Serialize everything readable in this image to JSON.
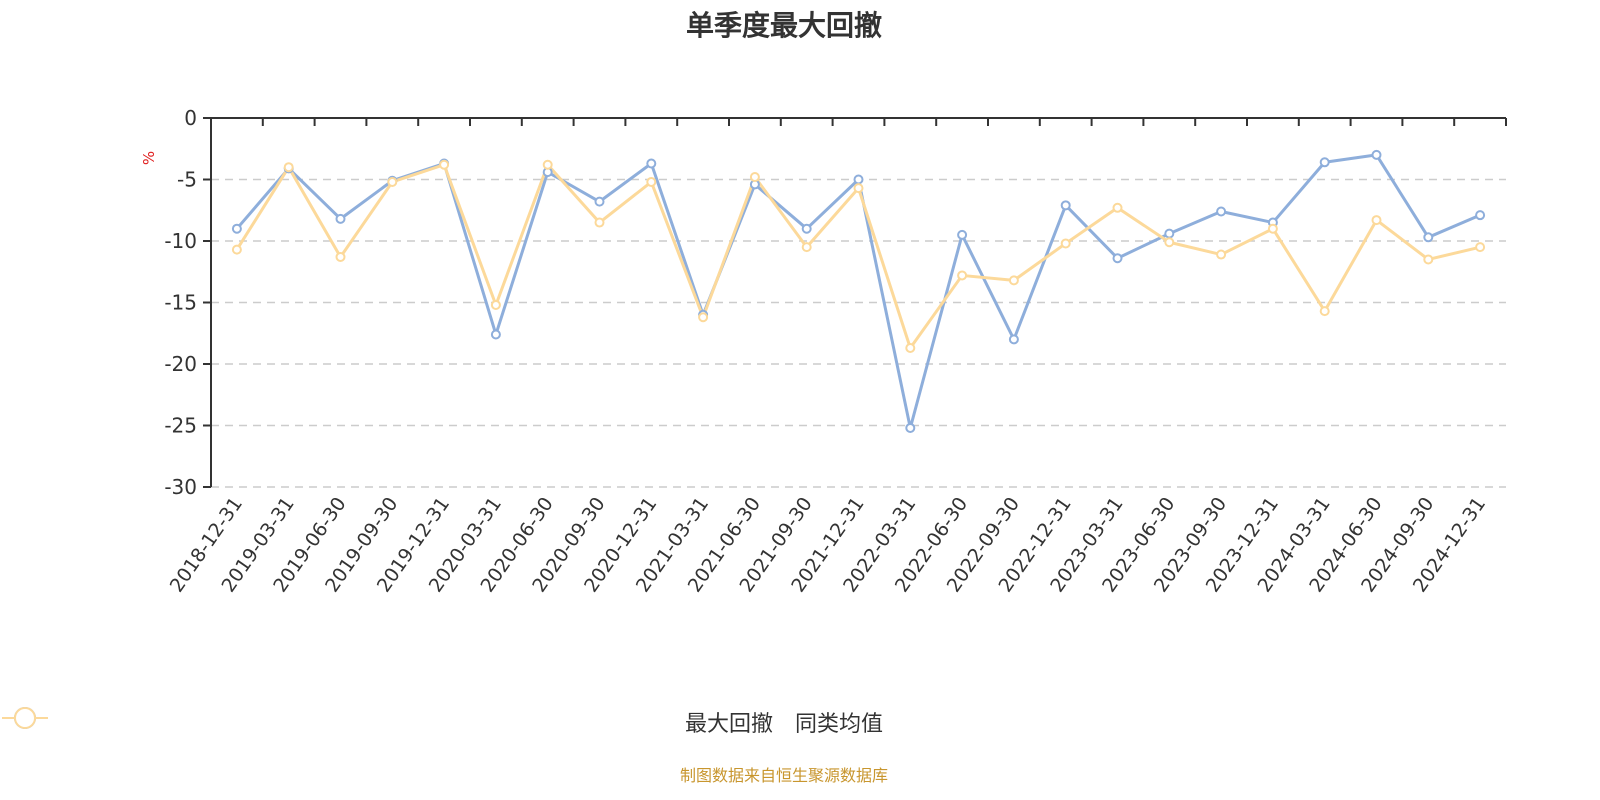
{
  "title": "单季度最大回撤",
  "source_note": "制图数据来自恒生聚源数据库",
  "legend": [
    {
      "label": "最大回撤",
      "color": "#8eaedb"
    },
    {
      "label": "同类均值",
      "color": "#fcd99a"
    }
  ],
  "chart_data": {
    "type": "line",
    "title": "单季度最大回撤",
    "xlabel": "",
    "ylabel": "%",
    "ylim": [
      -30,
      0
    ],
    "yticks": [
      0,
      -5,
      -10,
      -15,
      -20,
      -25,
      -30
    ],
    "grid": true,
    "legend_position": "bottom",
    "categories": [
      "2018-12-31",
      "2019-03-31",
      "2019-06-30",
      "2019-09-30",
      "2019-12-31",
      "2020-03-31",
      "2020-06-30",
      "2020-09-30",
      "2020-12-31",
      "2021-03-31",
      "2021-06-30",
      "2021-09-30",
      "2021-12-31",
      "2022-03-31",
      "2022-06-30",
      "2022-09-30",
      "2022-12-31",
      "2023-03-31",
      "2023-06-30",
      "2023-09-30",
      "2023-12-31",
      "2024-03-31",
      "2024-06-30",
      "2024-09-30",
      "2024-12-31"
    ],
    "series": [
      {
        "name": "最大回撤",
        "color": "#8eaedb",
        "values": [
          -9.0,
          -4.1,
          -8.2,
          -5.1,
          -3.7,
          -17.6,
          -4.4,
          -6.8,
          -3.7,
          -16.0,
          -5.4,
          -9.0,
          -5.0,
          -25.2,
          -9.5,
          -18.0,
          -7.1,
          -11.4,
          -9.4,
          -7.6,
          -8.5,
          -3.6,
          -3.0,
          -9.7,
          -7.9
        ]
      },
      {
        "name": "同类均值",
        "color": "#fcd99a",
        "values": [
          -10.7,
          -4.0,
          -11.3,
          -5.2,
          -3.8,
          -15.2,
          -3.8,
          -8.5,
          -5.2,
          -16.2,
          -4.8,
          -10.5,
          -5.7,
          -18.7,
          -12.8,
          -13.2,
          -10.2,
          -7.3,
          -10.1,
          -11.1,
          -9.0,
          -15.7,
          -8.3,
          -11.5,
          -10.5
        ]
      }
    ]
  }
}
